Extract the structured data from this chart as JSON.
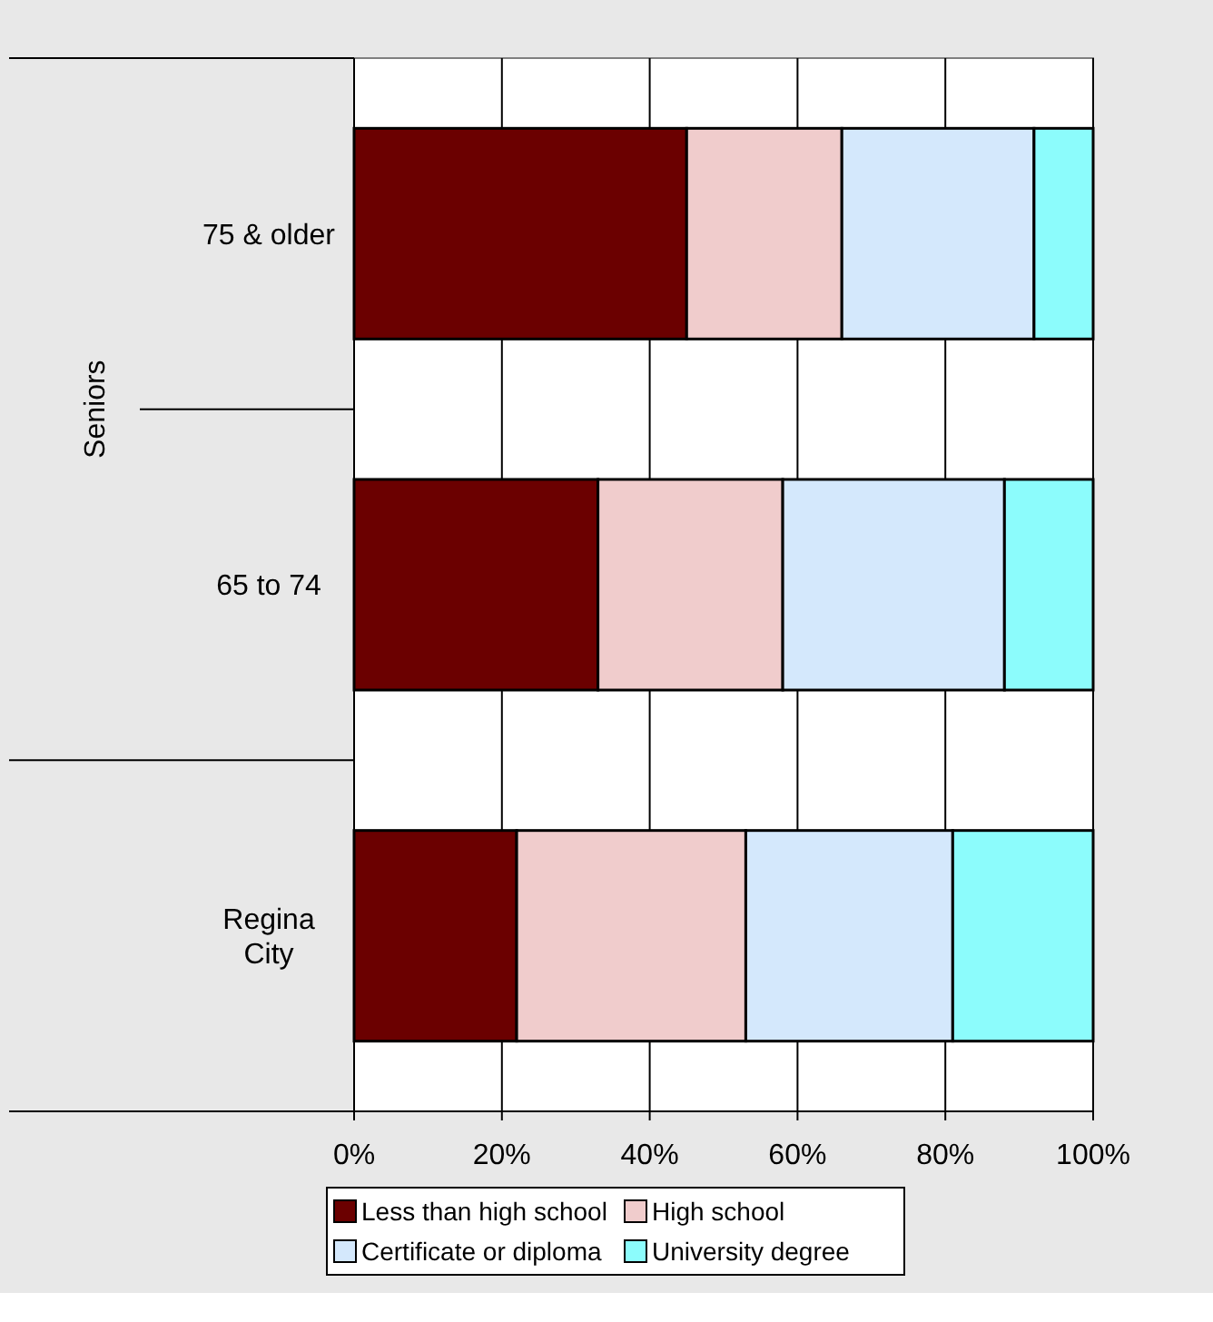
{
  "chart_data": {
    "type": "bar",
    "orientation": "horizontal",
    "stacked": true,
    "categories": [
      "75 & older",
      "65 to 74",
      "Regina City"
    ],
    "ylabel": "Seniors",
    "series": [
      {
        "name": "Less than high school",
        "color": "#6b0000",
        "values": [
          45,
          33,
          22
        ]
      },
      {
        "name": "High school",
        "color": "#f0cccc",
        "values": [
          21,
          25,
          31
        ]
      },
      {
        "name": "Certificate or diploma",
        "color": "#d4e8fc",
        "values": [
          26,
          30,
          28
        ]
      },
      {
        "name": "University degree",
        "color": "#8cfcfc",
        "values": [
          8,
          12,
          19
        ]
      }
    ],
    "xlim": [
      0,
      100
    ],
    "xticks": [
      {
        "value": 0,
        "label": "0%"
      },
      {
        "value": 20,
        "label": "20%"
      },
      {
        "value": 40,
        "label": "40%"
      },
      {
        "value": 60,
        "label": "60%"
      },
      {
        "value": 80,
        "label": "80%"
      },
      {
        "value": 100,
        "label": "100%"
      }
    ],
    "grid": "x",
    "legend": "bottom"
  }
}
